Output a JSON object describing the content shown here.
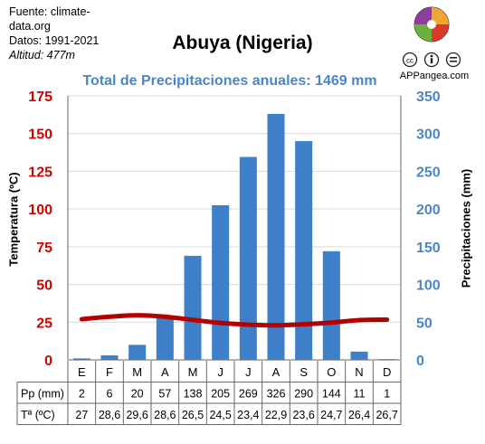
{
  "source": {
    "line1": "Fuente: climate-",
    "line2": "data.org",
    "line3": "Datos: 1991-2021",
    "line4": "Altitud: 477m"
  },
  "brand": {
    "site": "APPangea.com",
    "license_icons": [
      "cc-icon",
      "person-icon",
      "equals-icon"
    ]
  },
  "colors": {
    "bars": "#3d7fc9",
    "line": "#b30000",
    "left_axis": "#d40000",
    "right_axis": "#4a86c6",
    "subtitle": "#4a86c6"
  },
  "chart_data": {
    "type": "bar+line",
    "title": "Abuya (Nigeria)",
    "subtitle": "Total de Precipitaciones anuales: 1469 mm",
    "months": [
      "E",
      "F",
      "M",
      "A",
      "M",
      "J",
      "J",
      "A",
      "S",
      "O",
      "N",
      "D"
    ],
    "precipitation": {
      "label": "Pp (mm)",
      "axis_label": "Precipitaciones (mm)",
      "values": [
        2,
        6,
        20,
        57,
        138,
        205,
        269,
        326,
        290,
        144,
        11,
        1
      ],
      "display": [
        "2",
        "6",
        "20",
        "57",
        "138",
        "205",
        "269",
        "326",
        "290",
        "144",
        "11",
        "1"
      ],
      "ylim": [
        0,
        350
      ],
      "ticks": [
        0,
        50,
        100,
        150,
        200,
        250,
        300,
        350
      ]
    },
    "temperature": {
      "label": "Tª (ºC)",
      "axis_label": "Temperatura (ºC)",
      "values": [
        27,
        28.6,
        29.6,
        28.6,
        26.5,
        24.5,
        23.4,
        22.9,
        23.6,
        24.7,
        26.4,
        26.7
      ],
      "display": [
        "27",
        "28,6",
        "29,6",
        "28,6",
        "26,5",
        "24,5",
        "23,4",
        "22,9",
        "23,6",
        "24,7",
        "26,4",
        "26,7"
      ],
      "ylim": [
        0,
        175
      ],
      "ticks": [
        0,
        25,
        50,
        75,
        100,
        125,
        150,
        175
      ]
    },
    "grid": "horizontal"
  }
}
